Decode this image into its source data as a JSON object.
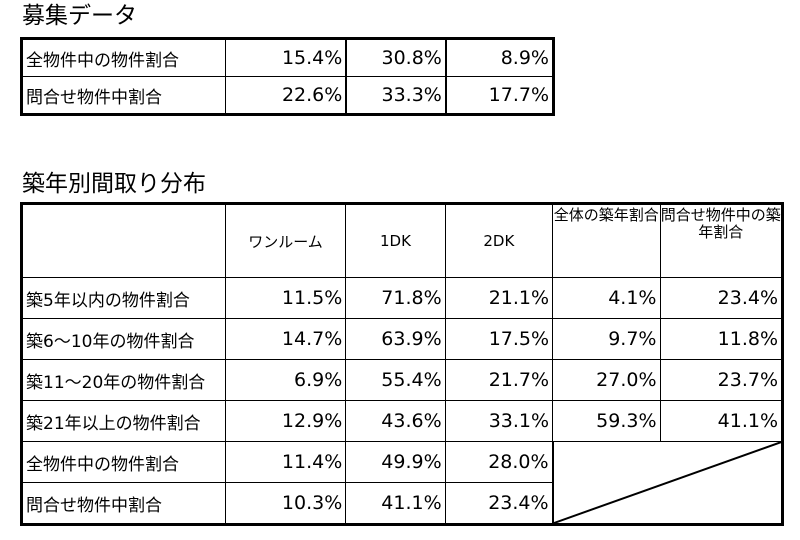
{
  "recruit": {
    "title": "募集データ",
    "rows": [
      {
        "label": "全物件中の物件割合",
        "values": [
          "15.4%",
          "30.8%",
          "8.9%"
        ]
      },
      {
        "label": "問合せ物件中割合",
        "values": [
          "22.6%",
          "33.3%",
          "17.7%"
        ]
      }
    ]
  },
  "layout_dist": {
    "title": "築年別間取り分布",
    "headers": [
      "ワンルーム",
      "1DK",
      "2DK",
      "全体の築年割合",
      "問合せ物件中の築年割合"
    ],
    "rows": [
      {
        "label": "築5年以内の物件割合",
        "values": [
          "11.5%",
          "71.8%",
          "21.1%",
          "4.1%",
          "23.4%"
        ]
      },
      {
        "label": "築6～10年の物件割合",
        "values": [
          "14.7%",
          "63.9%",
          "17.5%",
          "9.7%",
          "11.8%"
        ]
      },
      {
        "label": "築11～20年の物件割合",
        "values": [
          "6.9%",
          "55.4%",
          "21.7%",
          "27.0%",
          "23.7%"
        ]
      },
      {
        "label": "築21年以上の物件割合",
        "values": [
          "12.9%",
          "43.6%",
          "33.1%",
          "59.3%",
          "41.1%"
        ]
      },
      {
        "label": "全物件中の物件割合",
        "values": [
          "11.4%",
          "49.9%",
          "28.0%"
        ]
      },
      {
        "label": "問合せ物件中割合",
        "values": [
          "10.3%",
          "41.1%",
          "23.4%"
        ]
      }
    ]
  }
}
